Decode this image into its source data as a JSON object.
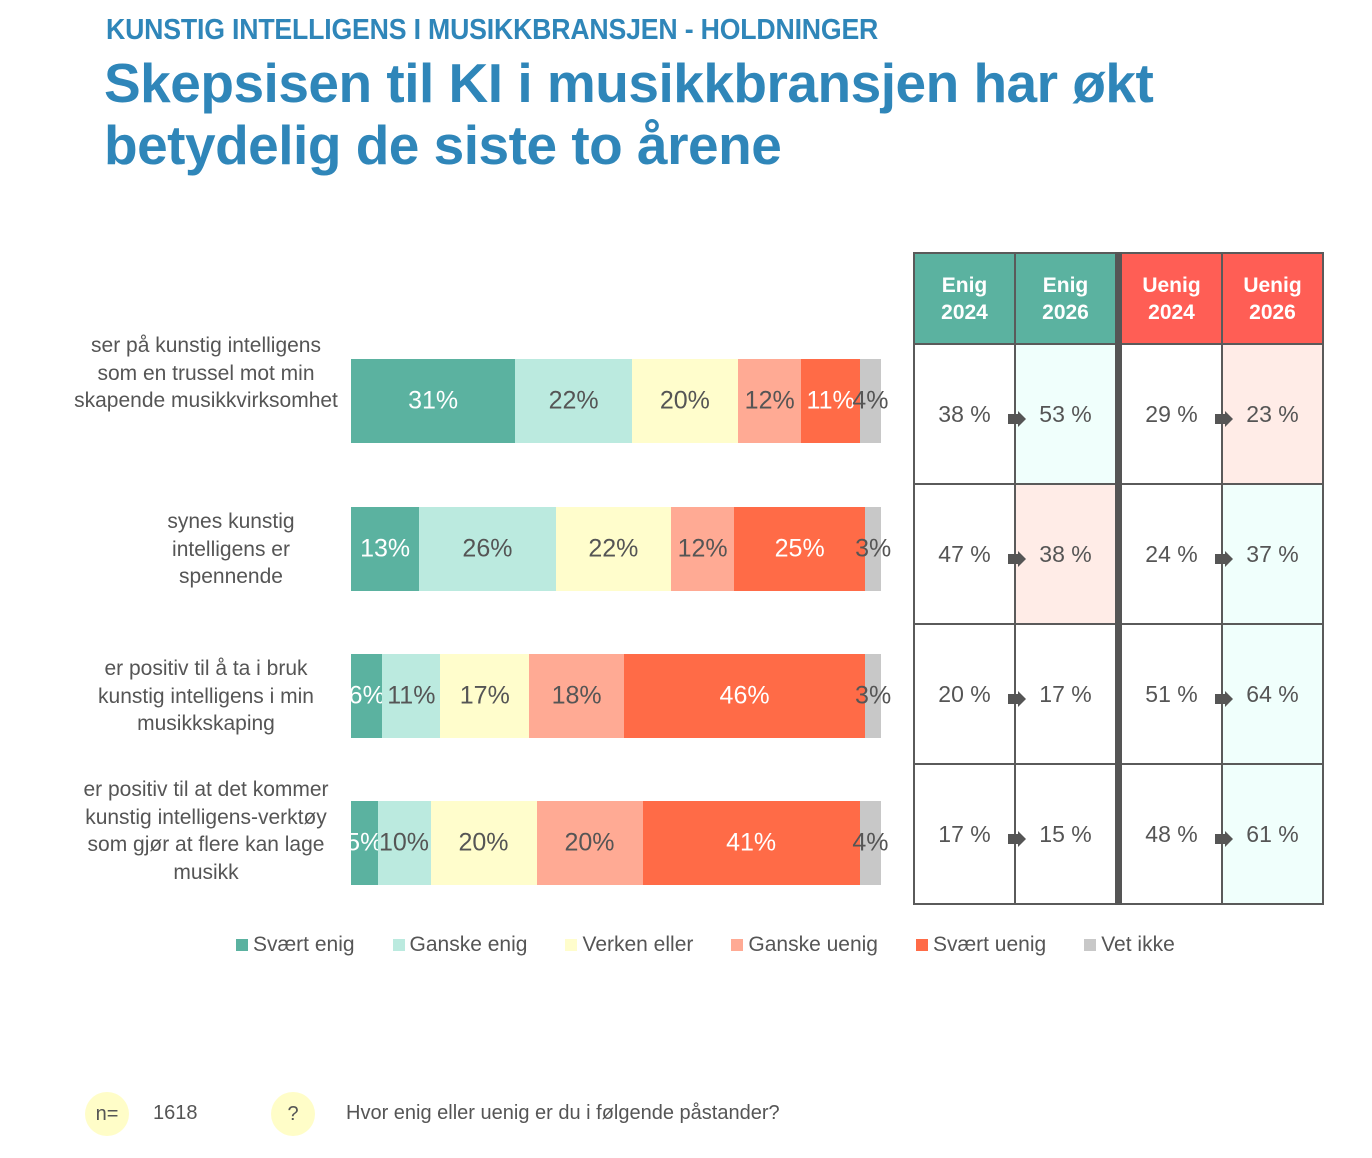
{
  "header": {
    "kicker": "KUNSTIG INTELLIGENS I MUSIKKBRANSJEN - HOLDNINGER",
    "title": "Skepsisen til KI i musikkbransjen har økt betydelig de siste to årene"
  },
  "chart_data": {
    "type": "bar",
    "orientation": "horizontal-stacked-100",
    "categories": [
      "ser på kunstig intelligens som en trussel mot min skapende musikkvirksomhet",
      "synes kunstig intelligens er spennende",
      "er positiv til å ta i bruk kunstig intelligens i min musikkskaping",
      "er positiv til at det kommer kunstig intelligens-verktøy som gjør at flere kan lage musikk"
    ],
    "series": [
      {
        "name": "Svært enig",
        "color": "#5BB2A0",
        "label_color": "#ffffff",
        "values": [
          31,
          13,
          6,
          5
        ]
      },
      {
        "name": "Ganske enig",
        "color": "#BBEADF",
        "label_color": "#555555",
        "values": [
          22,
          26,
          11,
          10
        ]
      },
      {
        "name": "Verken eller",
        "color": "#FFFDCC",
        "label_color": "#555555",
        "values": [
          20,
          22,
          17,
          20
        ]
      },
      {
        "name": "Ganske uenig",
        "color": "#FFAA94",
        "label_color": "#555555",
        "values": [
          12,
          12,
          18,
          20
        ]
      },
      {
        "name": "Svært uenig",
        "color": "#FF6B47",
        "label_color": "#ffffff",
        "values": [
          11,
          25,
          46,
          41
        ]
      },
      {
        "name": "Vet ikke",
        "color": "#C8C8C8",
        "label_color": "#555555",
        "values": [
          4,
          3,
          3,
          4
        ]
      }
    ],
    "value_suffix": "%",
    "legend": "bottom",
    "xlim": [
      0,
      100
    ]
  },
  "comparison_table": {
    "headers": [
      {
        "label": "Enig\n2024",
        "line1": "Enig",
        "line2": "2024",
        "color": "#5BB2A0"
      },
      {
        "label": "Enig\n2026",
        "line1": "Enig",
        "line2": "2026",
        "color": "#5BB2A0"
      },
      {
        "label": "Uenig\n2024",
        "line1": "Uenig",
        "line2": "2024",
        "color": "#FF5E55"
      },
      {
        "label": "Uenig\n2026",
        "line1": "Uenig",
        "line2": "2026",
        "color": "#FF5E55"
      }
    ],
    "rows": [
      {
        "enig_2024": "38 %",
        "enig_2026": "53 %",
        "uenig_2024": "29 %",
        "uenig_2026": "23 %",
        "enig_2026_tint": "#F0FFFC",
        "uenig_2026_tint": "#FFECE7"
      },
      {
        "enig_2024": "47 %",
        "enig_2026": "38 %",
        "uenig_2024": "24 %",
        "uenig_2026": "37 %",
        "enig_2026_tint": "#FFECE7",
        "uenig_2026_tint": "#F0FFFC"
      },
      {
        "enig_2024": "20 %",
        "enig_2026": "17 %",
        "uenig_2024": "51 %",
        "uenig_2026": "64 %",
        "enig_2026_tint": "#FFFFFF",
        "uenig_2026_tint": "#F0FFFC"
      },
      {
        "enig_2024": "17 %",
        "enig_2026": "15 %",
        "uenig_2024": "48 %",
        "uenig_2026": "61 %",
        "enig_2026_tint": "#FFFFFF",
        "uenig_2026_tint": "#F0FFFC"
      }
    ],
    "arrow_icon": "arrow-right-icon"
  },
  "footer": {
    "n_badge": "n=",
    "n_value": "1618",
    "question_badge": "?",
    "question_text": "Hvor enig eller uenig er du i følgende påstander?"
  }
}
